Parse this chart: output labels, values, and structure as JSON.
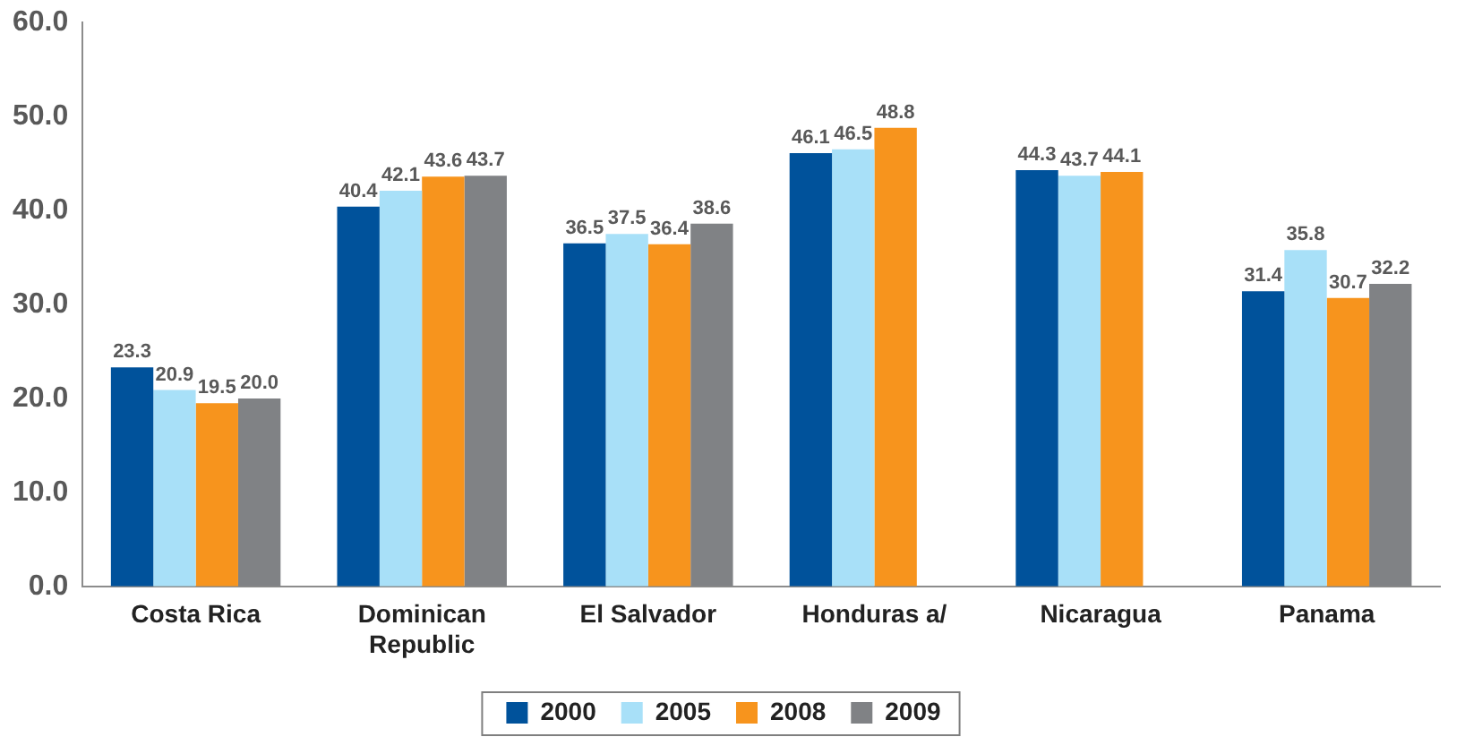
{
  "chart_data": {
    "type": "bar",
    "categories": [
      "Costa Rica",
      "Dominican Republic",
      "El Salvador",
      "Honduras a/",
      "Nicaragua",
      "Panama"
    ],
    "series": [
      {
        "name": "2000",
        "color": "#00529b",
        "values": [
          23.3,
          40.4,
          36.5,
          46.1,
          44.3,
          31.4
        ],
        "value_labels": [
          "23.3",
          "40.4",
          "36.5",
          "46.1",
          "44.3",
          "31.4"
        ]
      },
      {
        "name": "2005",
        "color": "#a8e0f8",
        "values": [
          20.9,
          42.1,
          37.5,
          46.5,
          43.7,
          35.8
        ],
        "value_labels": [
          "20.9",
          "42.1",
          "37.5",
          "46.5",
          "43.7",
          "35.8"
        ]
      },
      {
        "name": "2008",
        "color": "#f7941d",
        "values": [
          19.5,
          43.6,
          36.4,
          48.8,
          44.1,
          30.7
        ],
        "value_labels": [
          "19.5",
          "43.6",
          "36.4",
          "48.8",
          "44.1",
          "30.7"
        ]
      },
      {
        "name": "2009",
        "color": "#808285",
        "values": [
          20.0,
          43.7,
          38.6,
          null,
          null,
          32.2
        ],
        "value_labels": [
          "20.0",
          "43.7",
          "38.6",
          null,
          null,
          "32.2"
        ]
      }
    ],
    "ylim": [
      0,
      60
    ],
    "yticks": [
      {
        "value": 0,
        "label": "0.0"
      },
      {
        "value": 10,
        "label": "10.0"
      },
      {
        "value": 20,
        "label": "20.0"
      },
      {
        "value": 30,
        "label": "30.0"
      },
      {
        "value": 40,
        "label": "40.0"
      },
      {
        "value": 50,
        "label": "50.0"
      },
      {
        "value": 60,
        "label": "60.0"
      }
    ],
    "grid": false,
    "legend": "bottom"
  }
}
